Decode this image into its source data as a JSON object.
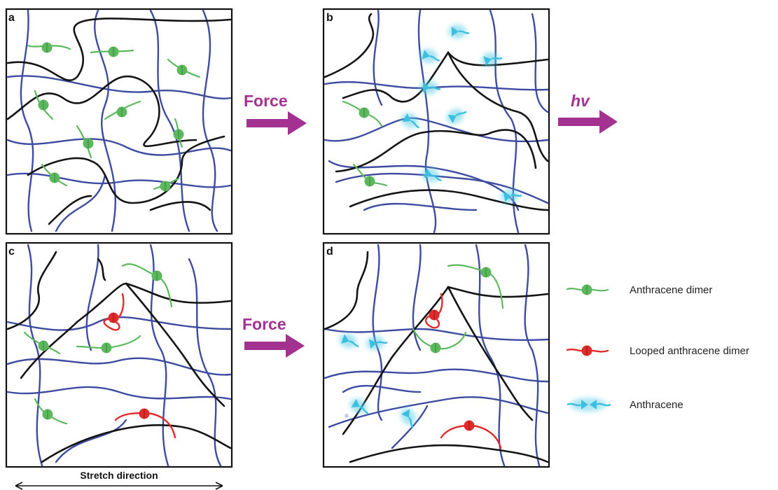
{
  "panels": {
    "a": "a",
    "b": "b",
    "c": "c",
    "d": "d"
  },
  "arrows": {
    "force_top": "Force",
    "hv": "hv",
    "force_bottom": "Force"
  },
  "legend": {
    "dimer": "Anthracene dimer",
    "looped": "Looped anthracene dimer",
    "anthracene": "Anthracene"
  },
  "stretch": "Stretch direction",
  "colors": {
    "blue_chain": "#3d4ba0",
    "black_chain": "#141414",
    "dimer": "#5cb85c",
    "looped_dimer": "#e02b2b",
    "anthracene": "#5ecfe8",
    "arrow": "#a2318f"
  }
}
